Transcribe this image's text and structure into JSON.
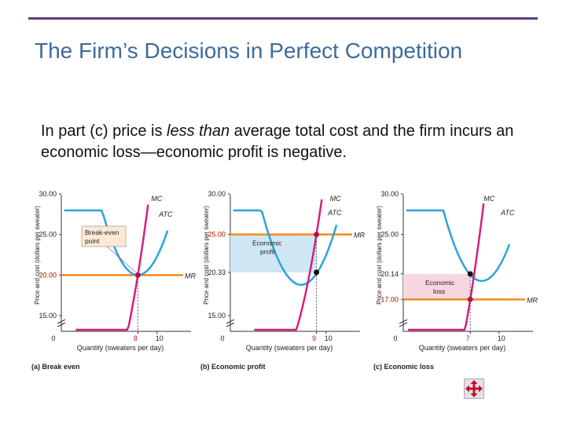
{
  "slide": {
    "title": "The Firm’s Decisions in Perfect Competition",
    "body": {
      "part1": "In part (c) price is ",
      "emph": "less than",
      "part2": " average total cost and the firm incurs an economic loss—economic profit is negative."
    }
  },
  "nav_icon": "move-arrows-icon",
  "colors": {
    "title": "#3d6b9c",
    "rule": "#5b3f7c",
    "mc": "#d61f7d",
    "atc": "#2ba3dc",
    "mr": "#f08a1c",
    "point": "#b2124f",
    "profit_area": "#cfe7f5",
    "loss_area": "#f7d6e2"
  },
  "chart_data": [
    {
      "type": "line",
      "panel_label": "(a) Break even",
      "xlabel": "Quantity (sweaters per day)",
      "ylabel": "Price and cost (dollars per sweater)",
      "xticks": [
        "0",
        "8",
        "10"
      ],
      "yticks": [
        "15.00",
        "20.00",
        "25.00",
        "30.00"
      ],
      "ylim": [
        15,
        30
      ],
      "price_label": "20.00",
      "output_label": "8",
      "price": 20,
      "output": 8,
      "atc_at_output": 20,
      "curves": {
        "mc": "MC",
        "atc": "ATC",
        "mr": "MR"
      },
      "annotation": [
        "Break-even",
        "point"
      ]
    },
    {
      "type": "line",
      "panel_label": "(b) Economic profit",
      "xlabel": "Quantity (sweaters per day)",
      "ylabel": "Price and cost (dollars per sweater)",
      "xticks": [
        "0",
        "9",
        "10"
      ],
      "yticks": [
        "15.00",
        "20.33",
        "25.00",
        "30.00"
      ],
      "ylim": [
        15,
        30
      ],
      "price_label": "25.00",
      "atc_label": "20.33",
      "output_label": "9",
      "price": 25,
      "output": 9,
      "atc_at_output": 20.33,
      "curves": {
        "mc": "MC",
        "atc": "ATC",
        "mr": "MR"
      },
      "annotation": [
        "Economic",
        "profit"
      ]
    },
    {
      "type": "line",
      "panel_label": "(c) Economic loss",
      "xlabel": "Quantity (sweaters per day)",
      "ylabel": "Price and cost (dollars per sweater)",
      "xticks": [
        "0",
        "7",
        "10"
      ],
      "yticks": [
        "17.00",
        "20.14",
        "25.00",
        "30.00"
      ],
      "ylim": [
        15,
        30
      ],
      "price_label": "17.00",
      "atc_label": "20.14",
      "output_label": "7",
      "price": 17,
      "output": 7,
      "atc_at_output": 20.14,
      "curves": {
        "mc": "MC",
        "atc": "ATC",
        "mr": "MR"
      },
      "annotation": [
        "Economic",
        "loss"
      ]
    }
  ]
}
